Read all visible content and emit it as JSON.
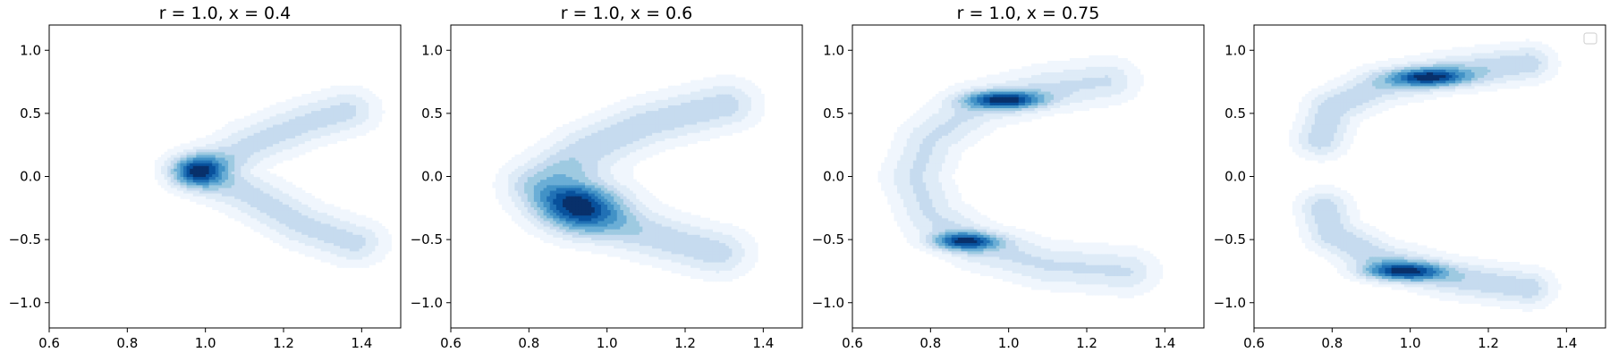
{
  "figure": {
    "layout": "1 row x 4 panels",
    "shared_axes": false
  },
  "chart_data": [
    {
      "type": "contour",
      "title": "r = 1.0, x = 0.4",
      "xlim": [
        0.6,
        1.5
      ],
      "ylim": [
        -1.2,
        1.2
      ],
      "xticks": [
        0.6,
        0.8,
        1.0,
        1.2,
        1.4
      ],
      "yticks": [
        -1.0,
        -0.5,
        0.0,
        0.5,
        1.0
      ],
      "colormap": "Blues",
      "filled": true,
      "levels": 8,
      "lobes": [
        {
          "path": [
            [
              1.38,
              -0.52
            ],
            [
              1.25,
              -0.38
            ],
            [
              1.12,
              -0.15
            ],
            [
              1.0,
              0.03
            ],
            [
              1.12,
              0.26
            ],
            [
              1.25,
              0.42
            ],
            [
              1.36,
              0.52
            ]
          ],
          "width": 0.12,
          "weight": 1.0
        },
        {
          "center": [
            0.98,
            0.05
          ],
          "rx": 0.05,
          "ry": 0.09,
          "weight": 2.2
        }
      ]
    },
    {
      "type": "contour",
      "title": "r = 1.0, x = 0.6",
      "xlim": [
        0.6,
        1.5
      ],
      "ylim": [
        -1.2,
        1.2
      ],
      "xticks": [
        0.6,
        0.8,
        1.0,
        1.2,
        1.4
      ],
      "yticks": [
        -1.0,
        -0.5,
        0.0,
        0.5,
        1.0
      ],
      "colormap": "Blues",
      "filled": true,
      "levels": 8,
      "lobes": [
        {
          "path": [
            [
              1.28,
              -0.6
            ],
            [
              1.1,
              -0.45
            ],
            [
              0.95,
              -0.3
            ],
            [
              0.82,
              -0.05
            ],
            [
              0.95,
              0.22
            ],
            [
              1.1,
              0.42
            ],
            [
              1.3,
              0.57
            ]
          ],
          "width": 0.13,
          "weight": 1.0
        },
        {
          "center": [
            0.93,
            -0.22
          ],
          "rx": 0.08,
          "ry": 0.15,
          "weight": 1.9
        }
      ]
    },
    {
      "type": "contour",
      "title": "r = 1.0, x = 0.75",
      "xlim": [
        0.6,
        1.5
      ],
      "ylim": [
        -1.2,
        1.2
      ],
      "xticks": [
        0.6,
        0.8,
        1.0,
        1.2,
        1.4
      ],
      "yticks": [
        -1.0,
        -0.5,
        0.0,
        0.5,
        1.0
      ],
      "colormap": "Blues",
      "filled": true,
      "levels": 8,
      "lobes": [
        {
          "path": [
            [
              1.3,
              -0.75
            ],
            [
              1.1,
              -0.7
            ],
            [
              0.92,
              -0.55
            ],
            [
              0.8,
              -0.3
            ],
            [
              0.76,
              0.0
            ],
            [
              0.8,
              0.3
            ],
            [
              0.92,
              0.56
            ],
            [
              1.1,
              0.7
            ],
            [
              1.25,
              0.76
            ]
          ],
          "width": 0.12,
          "weight": 0.8
        },
        {
          "center": [
            0.99,
            0.61
          ],
          "rx": 0.07,
          "ry": 0.05,
          "weight": 2.0
        },
        {
          "center": [
            0.89,
            -0.51
          ],
          "rx": 0.06,
          "ry": 0.05,
          "weight": 1.9
        }
      ]
    },
    {
      "type": "contour",
      "title": "",
      "xlim": [
        0.6,
        1.5
      ],
      "ylim": [
        -1.2,
        1.2
      ],
      "xticks": [
        0.6,
        0.8,
        1.0,
        1.2,
        1.4
      ],
      "yticks": [
        -1.0,
        -0.5,
        0.0,
        0.5,
        1.0
      ],
      "colormap": "Blues",
      "filled": true,
      "levels": 8,
      "legend": {
        "placement": "top-right",
        "entries": []
      },
      "lobes": [
        {
          "path": [
            [
              1.3,
              0.9
            ],
            [
              1.1,
              0.83
            ],
            [
              0.92,
              0.72
            ],
            [
              0.8,
              0.55
            ],
            [
              0.77,
              0.3
            ]
          ],
          "width": 0.1,
          "weight": 1.0
        },
        {
          "path": [
            [
              1.3,
              -0.88
            ],
            [
              1.1,
              -0.8
            ],
            [
              0.92,
              -0.65
            ],
            [
              0.8,
              -0.45
            ],
            [
              0.78,
              -0.25
            ]
          ],
          "width": 0.1,
          "weight": 1.0
        },
        {
          "center": [
            1.05,
            0.79
          ],
          "rx": 0.07,
          "ry": 0.05,
          "weight": 1.8
        },
        {
          "center": [
            0.98,
            -0.75
          ],
          "rx": 0.07,
          "ry": 0.05,
          "weight": 1.9
        }
      ]
    }
  ]
}
